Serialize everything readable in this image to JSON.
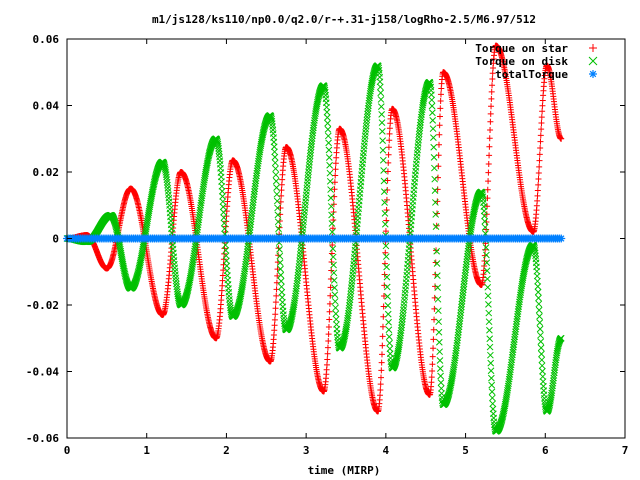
{
  "chart_data": {
    "type": "scatter",
    "title": "m1/js128/ks110/np0.0/q2.0/r-+.31-j158/logRho-2.5/M6.97/512",
    "xlabel": "time (MIRP)",
    "ylabel": "",
    "xlim": [
      0,
      7
    ],
    "ylim": [
      -0.06,
      0.06
    ],
    "xticks": [
      "0",
      "1",
      "2",
      "3",
      "4",
      "5",
      "6",
      "7"
    ],
    "yticks": [
      "-0.06",
      "-0.04",
      "-0.02",
      "0",
      "0.02",
      "0.04",
      "0.06"
    ],
    "grid": false,
    "legend_position": "top-right",
    "series": [
      {
        "name": "Torque on star",
        "marker": "+",
        "color": "#ff0000",
        "x_range": [
          0,
          6.2
        ],
        "peaks": [
          {
            "x": 0.25,
            "y": 0.001
          },
          {
            "x": 0.8,
            "y": 0.015
          },
          {
            "x": 1.43,
            "y": 0.02
          },
          {
            "x": 2.08,
            "y": 0.0235
          },
          {
            "x": 2.75,
            "y": 0.0275
          },
          {
            "x": 3.42,
            "y": 0.033
          },
          {
            "x": 4.08,
            "y": 0.039
          },
          {
            "x": 4.72,
            "y": 0.05
          },
          {
            "x": 5.38,
            "y": 0.058
          },
          {
            "x": 6.02,
            "y": 0.052
          }
        ],
        "troughs": [
          {
            "x": 0.0,
            "y": 0.0
          },
          {
            "x": 0.5,
            "y": -0.009
          },
          {
            "x": 1.2,
            "y": -0.023
          },
          {
            "x": 1.87,
            "y": -0.03
          },
          {
            "x": 2.55,
            "y": -0.037
          },
          {
            "x": 3.22,
            "y": -0.046
          },
          {
            "x": 3.9,
            "y": -0.052
          },
          {
            "x": 4.55,
            "y": -0.047
          },
          {
            "x": 5.2,
            "y": -0.014
          },
          {
            "x": 5.85,
            "y": 0.002
          },
          {
            "x": 6.2,
            "y": 0.03
          }
        ]
      },
      {
        "name": "Torque on disk",
        "marker": "x",
        "color": "#00c000",
        "x_range": [
          0,
          6.2
        ],
        "peaks": [
          {
            "x": 0.0,
            "y": 0.0
          },
          {
            "x": 0.55,
            "y": 0.007
          },
          {
            "x": 1.2,
            "y": 0.023
          },
          {
            "x": 1.87,
            "y": 0.03
          },
          {
            "x": 2.55,
            "y": 0.037
          },
          {
            "x": 3.22,
            "y": 0.046
          },
          {
            "x": 3.9,
            "y": 0.052
          },
          {
            "x": 4.55,
            "y": 0.047
          },
          {
            "x": 5.2,
            "y": 0.014
          },
          {
            "x": 5.85,
            "y": -0.002
          },
          {
            "x": 6.2,
            "y": -0.03
          }
        ],
        "troughs": [
          {
            "x": 0.25,
            "y": -0.001
          },
          {
            "x": 0.8,
            "y": -0.015
          },
          {
            "x": 1.43,
            "y": -0.02
          },
          {
            "x": 2.08,
            "y": -0.0235
          },
          {
            "x": 2.75,
            "y": -0.0275
          },
          {
            "x": 3.42,
            "y": -0.033
          },
          {
            "x": 4.08,
            "y": -0.039
          },
          {
            "x": 4.72,
            "y": -0.05
          },
          {
            "x": 5.38,
            "y": -0.058
          },
          {
            "x": 6.02,
            "y": -0.052
          }
        ]
      },
      {
        "name": "totalTorque",
        "marker": "*",
        "color": "#0080ff",
        "x_range": [
          0,
          6.2
        ],
        "constant_y": 0
      }
    ]
  }
}
